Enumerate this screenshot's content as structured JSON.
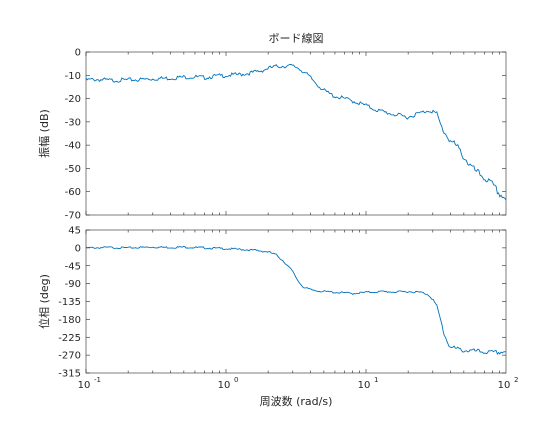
{
  "chart_data": [
    {
      "type": "line",
      "title": "ボード線図",
      "xlabel": "",
      "ylabel": "振幅 (dB)",
      "xscale": "log",
      "xlim": [
        0.1,
        100
      ],
      "ylim": [
        -70,
        0
      ],
      "yticks": [
        0,
        -10,
        -20,
        -30,
        -40,
        -50,
        -60,
        -70
      ],
      "grid": false,
      "color": "#0072BD",
      "series": [
        {
          "x": [
            0.1,
            0.12,
            0.15,
            0.2,
            0.25,
            0.3,
            0.4,
            0.5,
            0.6,
            0.7,
            0.8,
            1.0,
            1.2,
            1.5,
            1.8,
            2.0,
            2.3,
            2.6,
            2.9,
            3.2,
            3.6,
            4.0,
            4.5,
            5.0,
            5.5,
            6.0,
            7.0,
            8.0,
            10.0,
            12.0,
            15.0,
            18.0,
            20.0,
            22.0,
            25.0,
            28.0,
            30.0,
            32.0,
            35.0,
            40.0,
            45.0,
            50.0,
            55.0,
            60.0,
            70.0,
            80.0,
            90.0,
            100.0
          ],
          "y": [
            -12,
            -11.8,
            -12.2,
            -12,
            -11.8,
            -11.5,
            -11.2,
            -10.8,
            -10.7,
            -11,
            -10.5,
            -10,
            -9.8,
            -9,
            -8,
            -7,
            -6.2,
            -6,
            -6,
            -6.5,
            -8.5,
            -11,
            -14,
            -16.5,
            -18,
            -19,
            -20,
            -21,
            -23,
            -25,
            -26.5,
            -27.5,
            -28,
            -27,
            -26,
            -25,
            -25.5,
            -27,
            -33,
            -38,
            -41,
            -45,
            -48.5,
            -51,
            -54,
            -57,
            -61,
            -63
          ]
        }
      ]
    },
    {
      "type": "line",
      "title": "",
      "xlabel": "周波数 (rad/s)",
      "ylabel": "位相 (deg)",
      "xscale": "log",
      "xlim": [
        0.1,
        100
      ],
      "ylim": [
        -315,
        45
      ],
      "yticks": [
        45,
        0,
        -45,
        -90,
        -135,
        -180,
        -225,
        -270,
        -315
      ],
      "xticks": [
        0.1,
        1,
        10,
        100
      ],
      "xticklabels": [
        "10",
        "10",
        "10",
        "10"
      ],
      "xtickexponents": [
        "-1",
        "0",
        "1",
        "2"
      ],
      "grid": false,
      "color": "#0072BD",
      "series": [
        {
          "x": [
            0.1,
            0.15,
            0.2,
            0.3,
            0.4,
            0.5,
            0.7,
            1.0,
            1.3,
            1.6,
            2.0,
            2.3,
            2.6,
            3.0,
            3.3,
            3.6,
            4.0,
            4.5,
            5.0,
            6.0,
            7.0,
            8.0,
            10.0,
            13.0,
            16.0,
            20.0,
            25.0,
            28.0,
            30.0,
            32.0,
            34.0,
            36.0,
            38.0,
            40.0,
            45.0,
            50.0,
            60.0,
            70.0,
            80.0,
            90.0,
            100.0
          ],
          "y": [
            0,
            1,
            0,
            2,
            1,
            2,
            0,
            -2,
            -4,
            -6,
            -10,
            -18,
            -35,
            -60,
            -85,
            -100,
            -105,
            -108,
            -110,
            -112,
            -113,
            -115,
            -112,
            -110,
            -111,
            -110,
            -112,
            -118,
            -130,
            -148,
            -180,
            -215,
            -235,
            -250,
            -255,
            -258,
            -260,
            -262,
            -264,
            -263,
            -260
          ]
        }
      ]
    }
  ]
}
